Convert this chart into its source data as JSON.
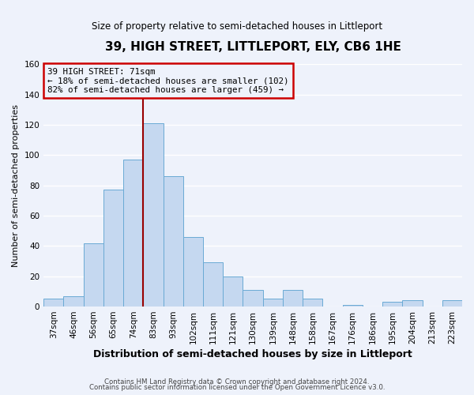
{
  "title": "39, HIGH STREET, LITTLEPORT, ELY, CB6 1HE",
  "subtitle": "Size of property relative to semi-detached houses in Littleport",
  "bar_labels": [
    "37sqm",
    "46sqm",
    "56sqm",
    "65sqm",
    "74sqm",
    "83sqm",
    "93sqm",
    "102sqm",
    "111sqm",
    "121sqm",
    "130sqm",
    "139sqm",
    "148sqm",
    "158sqm",
    "167sqm",
    "176sqm",
    "186sqm",
    "195sqm",
    "204sqm",
    "213sqm",
    "223sqm"
  ],
  "bar_values": [
    5,
    7,
    42,
    77,
    97,
    121,
    86,
    46,
    29,
    20,
    11,
    5,
    11,
    5,
    0,
    1,
    0,
    3,
    4,
    0,
    4
  ],
  "bar_color": "#c5d8f0",
  "bar_edge_color": "#6aaad4",
  "background_color": "#eef2fb",
  "grid_color": "#ffffff",
  "ylabel": "Number of semi-detached properties",
  "xlabel": "Distribution of semi-detached houses by size in Littleport",
  "ylim": [
    0,
    160
  ],
  "yticks": [
    0,
    20,
    40,
    60,
    80,
    100,
    120,
    140,
    160
  ],
  "annotation_text_line1": "39 HIGH STREET: 71sqm",
  "annotation_text_line2": "← 18% of semi-detached houses are smaller (102)",
  "annotation_text_line3": "82% of semi-detached houses are larger (459) →",
  "footer_line1": "Contains HM Land Registry data © Crown copyright and database right 2024.",
  "footer_line2": "Contains public sector information licensed under the Open Government Licence v3.0.",
  "box_edge_color": "#cc0000",
  "vline_color": "#990000",
  "vline_x": 4.5
}
